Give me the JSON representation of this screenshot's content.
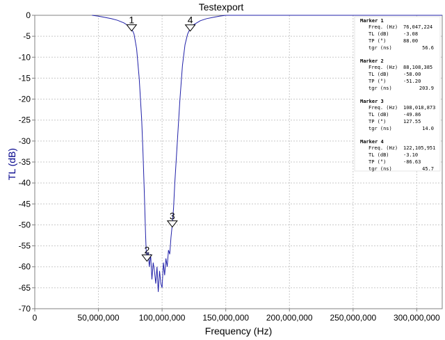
{
  "chart_data": {
    "type": "line",
    "title": "Testexport",
    "xlabel": "Frequency (Hz)",
    "ylabel": "TL (dB)",
    "xlim": [
      0,
      320000000
    ],
    "ylim": [
      -70,
      0
    ],
    "grid": true,
    "x_ticks": [
      {
        "value": 0,
        "label": "0"
      },
      {
        "value": 50000000,
        "label": "50,000,000"
      },
      {
        "value": 100000000,
        "label": "100,000,000"
      },
      {
        "value": 150000000,
        "label": "150,000,000"
      },
      {
        "value": 200000000,
        "label": "200,000,000"
      },
      {
        "value": 250000000,
        "label": "250,000,000"
      },
      {
        "value": 300000000,
        "label": "300,000,000"
      }
    ],
    "y_ticks": [
      {
        "value": 0,
        "label": "0"
      },
      {
        "value": -5,
        "label": "-5"
      },
      {
        "value": -10,
        "label": "-10"
      },
      {
        "value": -15,
        "label": "-15"
      },
      {
        "value": -20,
        "label": "-20"
      },
      {
        "value": -25,
        "label": "-25"
      },
      {
        "value": -30,
        "label": "-30"
      },
      {
        "value": -35,
        "label": "-35"
      },
      {
        "value": -40,
        "label": "-40"
      },
      {
        "value": -45,
        "label": "-45"
      },
      {
        "value": -50,
        "label": "-50"
      },
      {
        "value": -55,
        "label": "-55"
      },
      {
        "value": -60,
        "label": "-60"
      },
      {
        "value": -65,
        "label": "-65"
      },
      {
        "value": -70,
        "label": "-70"
      }
    ],
    "series": [
      {
        "color": "#1f1fa8",
        "x": [
          45000000,
          50000000,
          55000000,
          60000000,
          65000000,
          70000000,
          73000000,
          76000000,
          78000000,
          80000000,
          82000000,
          84000000,
          85000000,
          86000000,
          87000000,
          87500000,
          88100000,
          89000000,
          90000000,
          91000000,
          92000000,
          93000000,
          94000000,
          95000000,
          96000000,
          97000000,
          98000000,
          99000000,
          100000000,
          101000000,
          102000000,
          103000000,
          104000000,
          105000000,
          106000000,
          107000000,
          108000000,
          109000000,
          110000000,
          112000000,
          114000000,
          116000000,
          118000000,
          120000000,
          122100000,
          125000000,
          130000000,
          135000000,
          140000000,
          145000000,
          150000000,
          180000000,
          220000000,
          260000000,
          300000000,
          320000000
        ],
        "y": [
          0,
          -0.2,
          -0.5,
          -0.8,
          -1.2,
          -1.8,
          -2.4,
          -3.08,
          -4.5,
          -8,
          -15,
          -25,
          -33,
          -42,
          -52,
          -56,
          -58,
          -56.5,
          -60,
          -57,
          -63,
          -59,
          -61,
          -64,
          -60,
          -66,
          -61,
          -64,
          -65,
          -59,
          -62,
          -58,
          -60,
          -56,
          -57,
          -53,
          -49.86,
          -46,
          -40,
          -30,
          -20,
          -12,
          -7,
          -4.5,
          -3.1,
          -2.2,
          -1.3,
          -0.8,
          -0.5,
          -0.2,
          0,
          0,
          0,
          0,
          0,
          0
        ]
      }
    ],
    "markers": [
      {
        "label": "1",
        "x": 76047224,
        "y": -3.08
      },
      {
        "label": "2",
        "x": 88108385,
        "y": -58.0
      },
      {
        "label": "3",
        "x": 108018873,
        "y": -49.86
      },
      {
        "label": "4",
        "x": 122105951,
        "y": -3.1
      }
    ],
    "marker_info": [
      {
        "title": "Marker 1",
        "rows": [
          [
            "Freq. (Hz)",
            "76,047,224"
          ],
          [
            "TL (dB)",
            "-3.08"
          ],
          [
            "TP (°)",
            "88.00"
          ],
          [
            "tgr (ns)",
            "56.6"
          ]
        ]
      },
      {
        "title": "Marker 2",
        "rows": [
          [
            "Freq. (Hz)",
            "88,108,385"
          ],
          [
            "TL (dB)",
            "-58.00"
          ],
          [
            "TP (°)",
            "-51.20"
          ],
          [
            "tgr (ns)",
            "203.9"
          ]
        ]
      },
      {
        "title": "Marker 3",
        "rows": [
          [
            "Freq. (Hz)",
            "108,018,873"
          ],
          [
            "TL (dB)",
            "-49.86"
          ],
          [
            "TP (°)",
            "127.55"
          ],
          [
            "tgr (ns)",
            "14.0"
          ]
        ]
      },
      {
        "title": "Marker 4",
        "rows": [
          [
            "Freq. (Hz)",
            "122,105,951"
          ],
          [
            "TL (dB)",
            "-3.10"
          ],
          [
            "TP (°)",
            "-86.63"
          ],
          [
            "tgr (ns)",
            "45.7"
          ]
        ]
      }
    ]
  }
}
